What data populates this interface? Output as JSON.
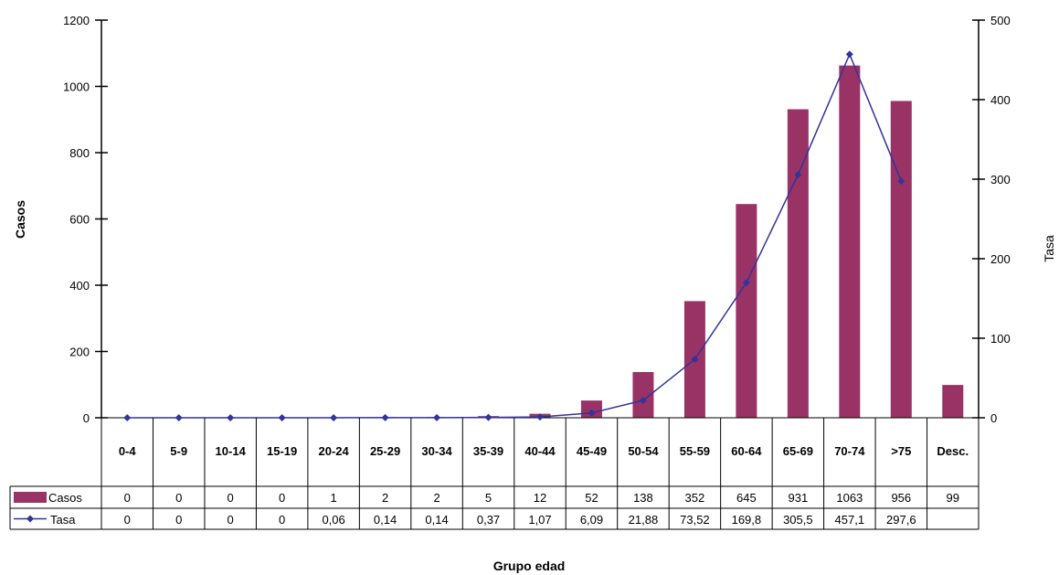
{
  "chart_data": {
    "type": "bar",
    "xlabel": "Grupo edad",
    "ylabel": "Casos",
    "ylabel_right": "Tasa",
    "ylim": [
      0,
      1200
    ],
    "ylim_right": [
      0,
      500
    ],
    "yticks": [
      "0",
      "200",
      "400",
      "600",
      "800",
      "1000",
      "1200"
    ],
    "yticks_right": [
      "0",
      "100",
      "200",
      "300",
      "400",
      "500"
    ],
    "grid": false,
    "legend": "data-table",
    "categories": [
      "0-4",
      "5-9",
      "10-14",
      "15-19",
      "20-24",
      "25-29",
      "30-34",
      "35-39",
      "40-44",
      "45-49",
      "50-54",
      "55-59",
      "60-64",
      "65-69",
      "70-74",
      ">75",
      "Desc."
    ],
    "series": [
      {
        "name": "Casos",
        "type": "bar",
        "axis": "left",
        "color": "#993366",
        "values": [
          0,
          0,
          0,
          0,
          1,
          2,
          2,
          5,
          12,
          52,
          138,
          352,
          645,
          931,
          1063,
          956,
          99
        ],
        "labels": [
          "0",
          "0",
          "0",
          "0",
          "1",
          "2",
          "2",
          "5",
          "12",
          "52",
          "138",
          "352",
          "645",
          "931",
          "1063",
          "956",
          "99"
        ]
      },
      {
        "name": "Tasa",
        "type": "line",
        "axis": "right",
        "color": "#333399",
        "values": [
          0,
          0,
          0,
          0,
          0.06,
          0.14,
          0.14,
          0.37,
          1.07,
          6.09,
          21.88,
          73.52,
          169.8,
          305.5,
          457.1,
          297.6,
          null
        ],
        "labels": [
          "0",
          "0",
          "0",
          "0",
          "0,06",
          "0,14",
          "0,14",
          "0,37",
          "1,07",
          "6,09",
          "21,88",
          "73,52",
          "169,8",
          "305,5",
          "457,1",
          "297,6",
          ""
        ]
      }
    ]
  }
}
